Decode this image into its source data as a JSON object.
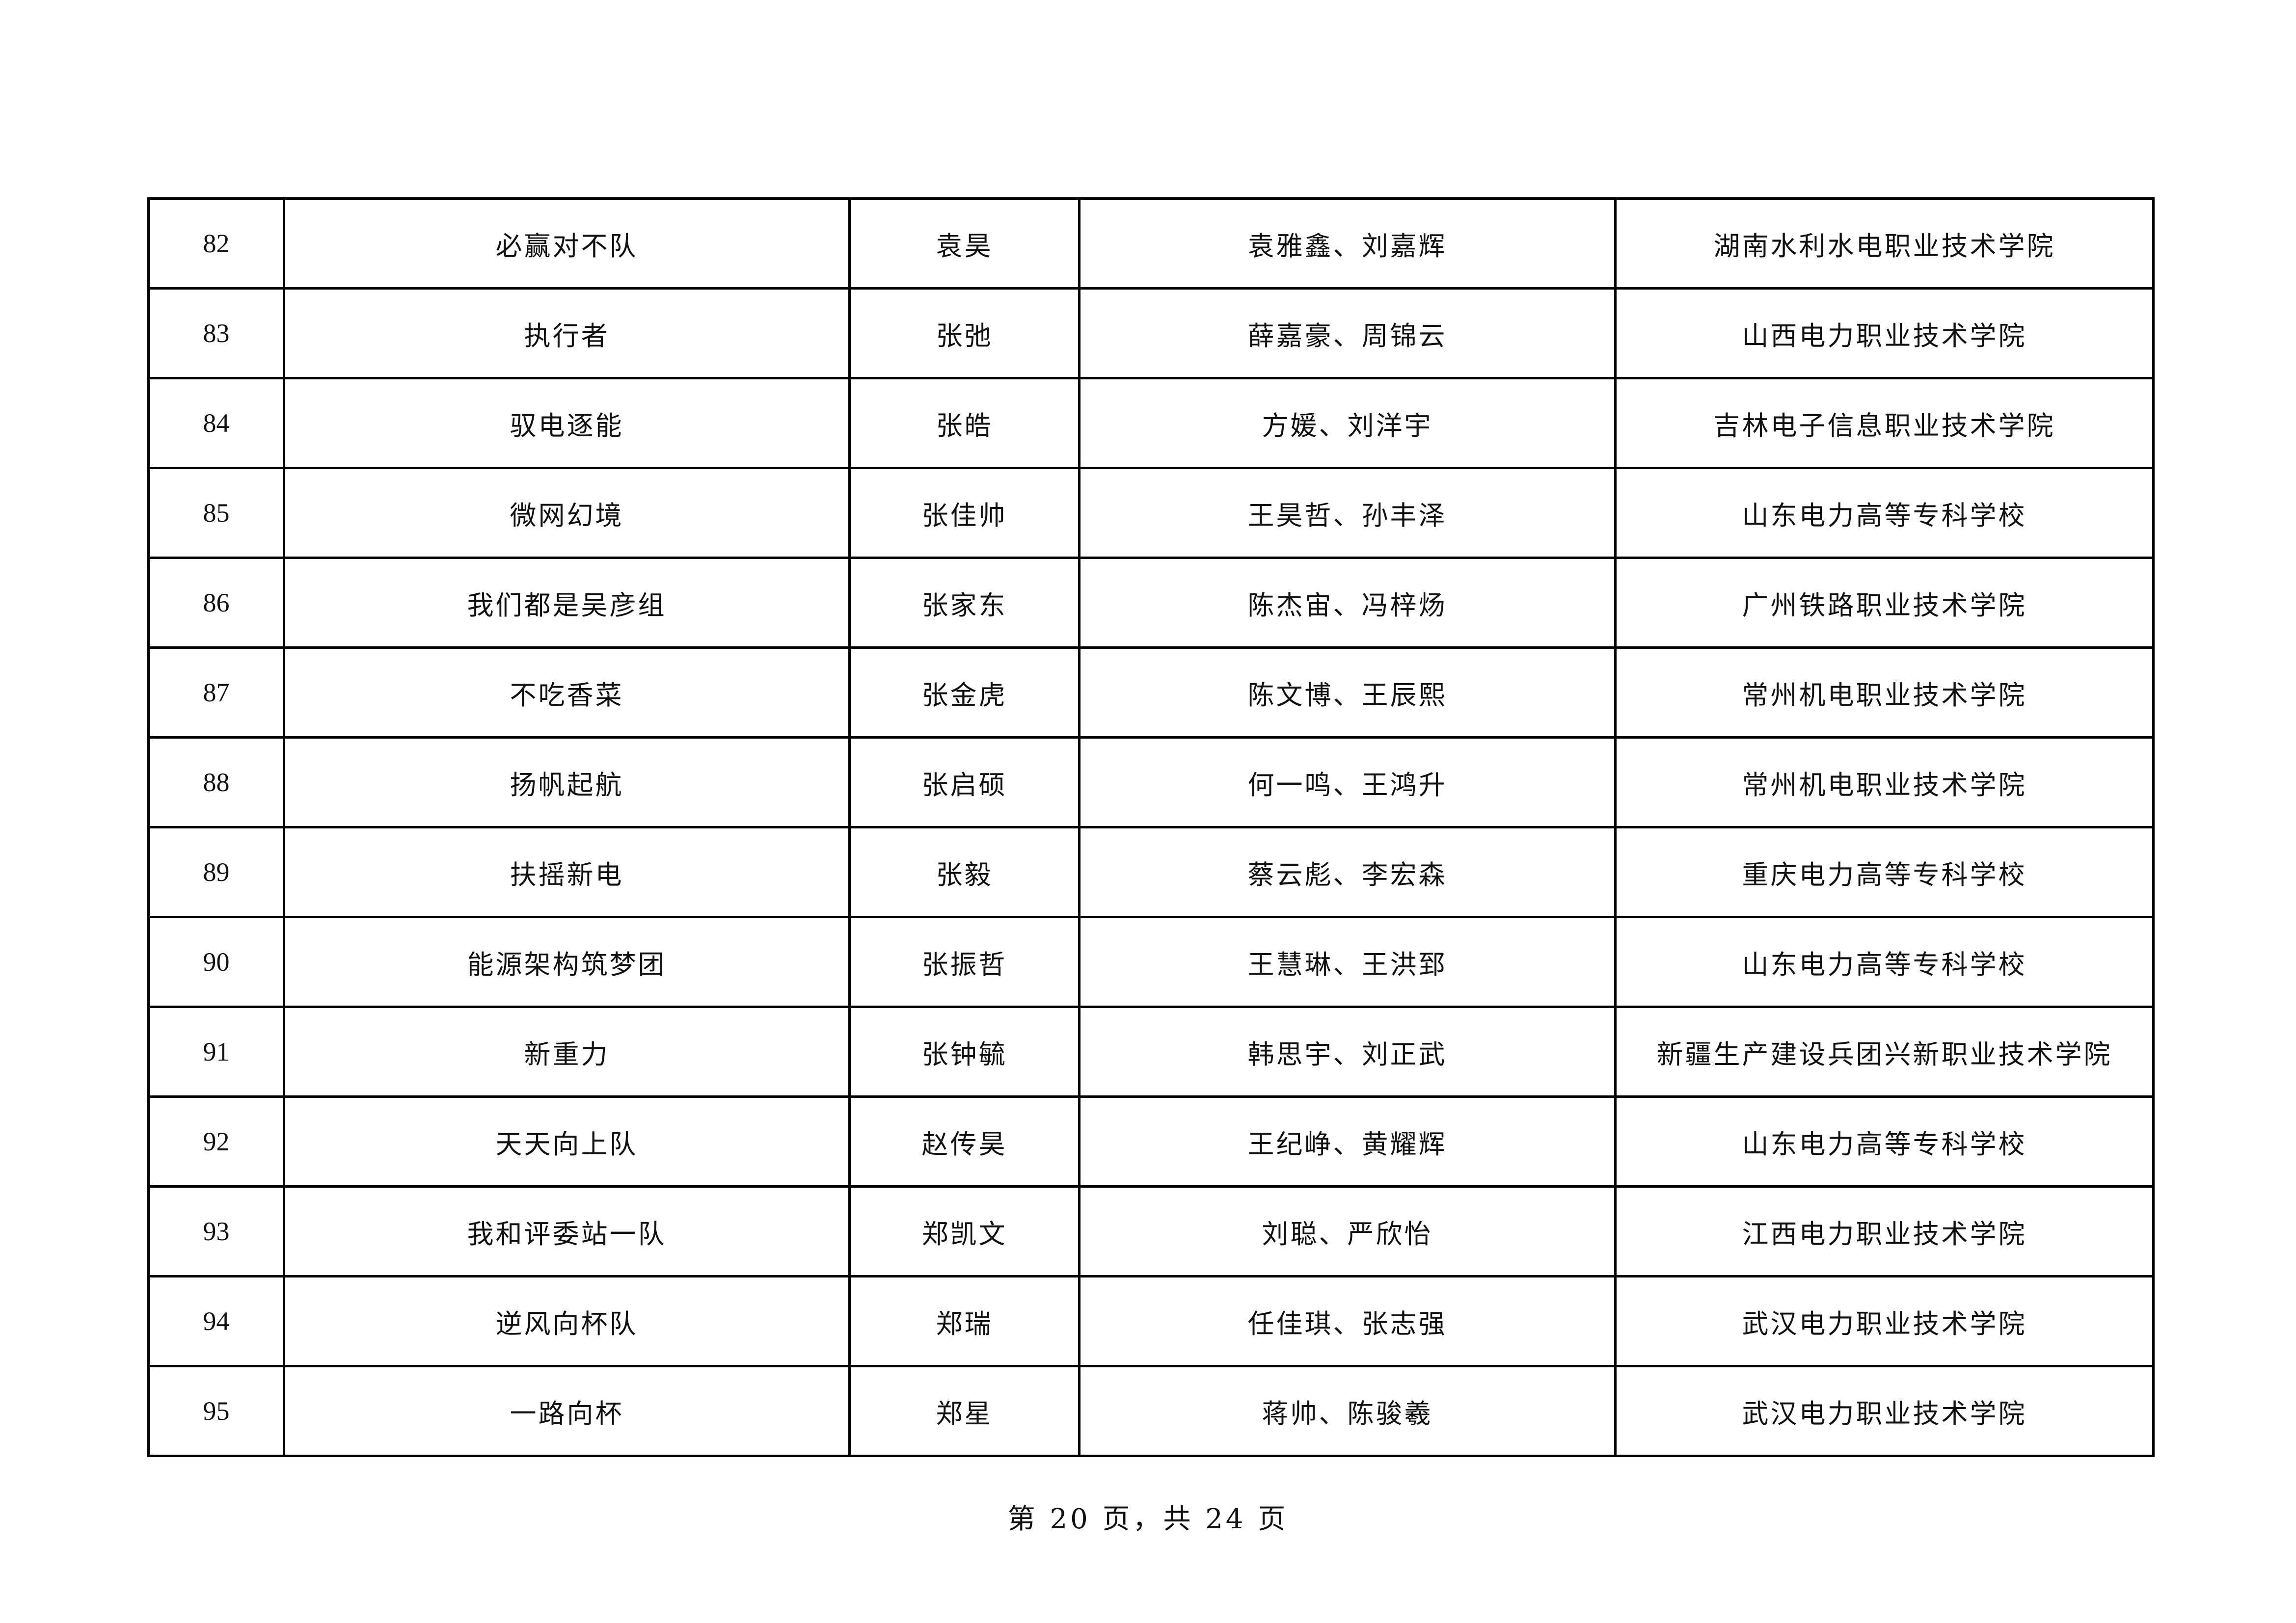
{
  "table": {
    "rows": [
      {
        "no": "82",
        "team": "必赢对不队",
        "advisor": "袁昊",
        "members": "袁雅鑫、刘嘉辉",
        "school": "湖南水利水电职业技术学院"
      },
      {
        "no": "83",
        "team": "执行者",
        "advisor": "张弛",
        "members": "薛嘉豪、周锦云",
        "school": "山西电力职业技术学院"
      },
      {
        "no": "84",
        "team": "驭电逐能",
        "advisor": "张皓",
        "members": "方媛、刘洋宇",
        "school": "吉林电子信息职业技术学院"
      },
      {
        "no": "85",
        "team": "微网幻境",
        "advisor": "张佳帅",
        "members": "王昊哲、孙丰泽",
        "school": "山东电力高等专科学校"
      },
      {
        "no": "86",
        "team": "我们都是吴彦组",
        "advisor": "张家东",
        "members": "陈杰宙、冯梓炀",
        "school": "广州铁路职业技术学院"
      },
      {
        "no": "87",
        "team": "不吃香菜",
        "advisor": "张金虎",
        "members": "陈文博、王辰熙",
        "school": "常州机电职业技术学院"
      },
      {
        "no": "88",
        "team": "扬帆起航",
        "advisor": "张启硕",
        "members": "何一鸣、王鸿升",
        "school": "常州机电职业技术学院"
      },
      {
        "no": "89",
        "team": "扶摇新电",
        "advisor": "张毅",
        "members": "蔡云彪、李宏森",
        "school": "重庆电力高等专科学校"
      },
      {
        "no": "90",
        "team": "能源架构筑梦团",
        "advisor": "张振哲",
        "members": "王慧琳、王洪郅",
        "school": "山东电力高等专科学校"
      },
      {
        "no": "91",
        "team": "新重力",
        "advisor": "张钟毓",
        "members": "韩思宇、刘正武",
        "school": "新疆生产建设兵团兴新职业技术学院"
      },
      {
        "no": "92",
        "team": "天天向上队",
        "advisor": "赵传昊",
        "members": "王纪峥、黄耀辉",
        "school": "山东电力高等专科学校"
      },
      {
        "no": "93",
        "team": "我和评委站一队",
        "advisor": "郑凯文",
        "members": "刘聪、严欣怡",
        "school": "江西电力职业技术学院"
      },
      {
        "no": "94",
        "team": "逆风向杯队",
        "advisor": "郑瑞",
        "members": "任佳琪、张志强",
        "school": "武汉电力职业技术学院"
      },
      {
        "no": "95",
        "team": "一路向杯",
        "advisor": "郑星",
        "members": "蒋帅、陈骏羲",
        "school": "武汉电力职业技术学院"
      }
    ]
  },
  "footer": {
    "page_label": "第 20 页，共 24 页"
  }
}
